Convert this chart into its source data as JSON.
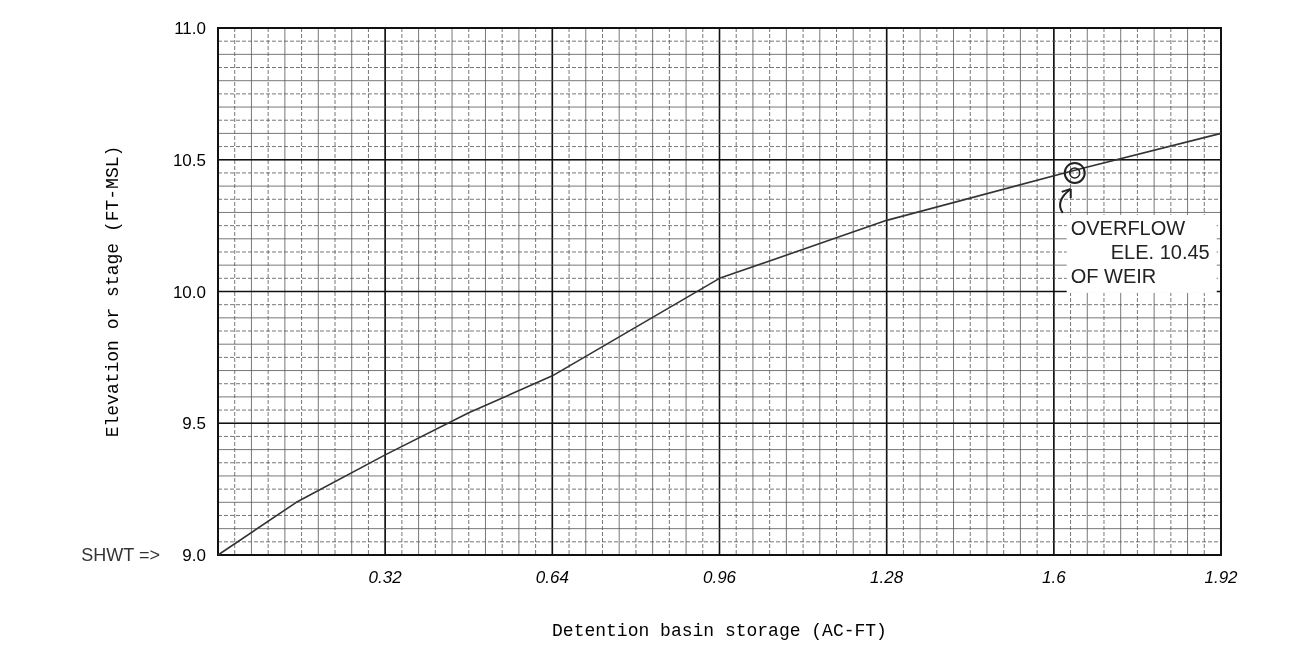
{
  "chart_data": {
    "type": "line",
    "xlabel": "Detention basin storage (AC-FT)",
    "ylabel": "Elevation or stage (FT-MSL)",
    "x": [
      0,
      0.15,
      0.32,
      0.48,
      0.64,
      0.96,
      1.28,
      1.64,
      1.92
    ],
    "series": [
      {
        "color": "#333333",
        "values": [
          9.0,
          9.2,
          9.38,
          9.54,
          9.68,
          10.05,
          10.27,
          10.46,
          10.6
        ]
      }
    ],
    "xlim": [
      0,
      1.92
    ],
    "ylim": [
      9.0,
      11.0
    ],
    "xticks": [
      0.32,
      0.64,
      0.96,
      1.28,
      1.6,
      1.92
    ],
    "yticks": [
      {
        "value": 9,
        "label": "9.0"
      },
      9.5,
      {
        "value": 10,
        "label": "10.0"
      },
      10.5,
      {
        "value": 11,
        "label": "11.0"
      }
    ],
    "grid": true,
    "marker": "none",
    "annotations": [
      {
        "text": "OVERFLOW\nELE. 10.45\nOF WEIR",
        "x": 1.64,
        "y": 10.45
      },
      "SHWT =>"
    ]
  }
}
